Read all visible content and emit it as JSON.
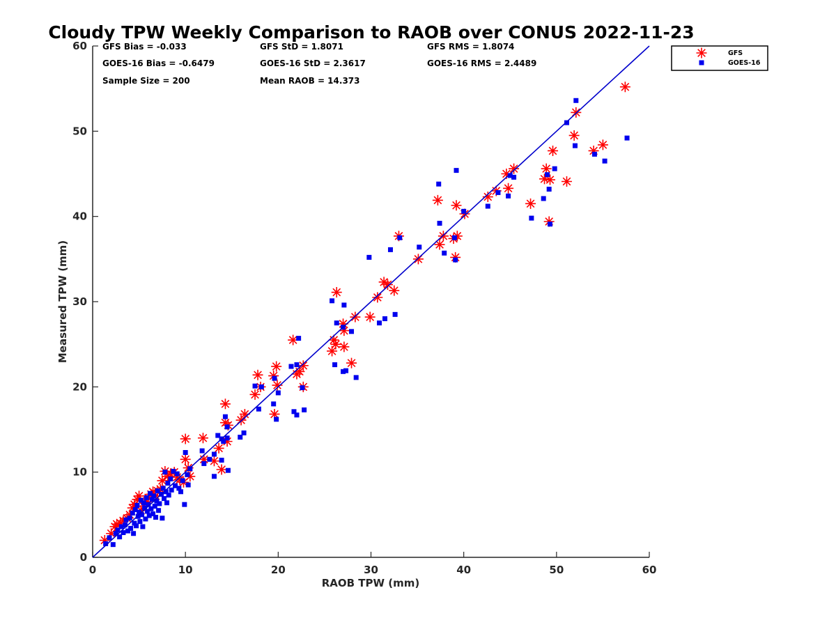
{
  "chart_data": {
    "type": "scatter",
    "title": "Cloudy TPW Weekly Comparison to RAOB over CONUS 2022-11-23",
    "xlabel": "RAOB TPW (mm)",
    "ylabel": "Measured TPW (mm)",
    "xlim": [
      0,
      60
    ],
    "ylim": [
      0,
      60
    ],
    "xticks": [
      "0",
      "10",
      "20",
      "30",
      "40",
      "50",
      "60"
    ],
    "yticks": [
      "0",
      "10",
      "20",
      "30",
      "40",
      "50",
      "60"
    ],
    "grid": false,
    "legend_position": "outside-top-right",
    "stats": [
      [
        "GFS Bias = -0.033",
        "GFS StD = 1.8071",
        "GFS RMS = 1.8074"
      ],
      [
        "GOES-16 Bias = -0.6479",
        "GOES-16 StD = 2.3617",
        "GOES-16 RMS = 2.4489"
      ],
      [
        "Sample Size = 200",
        "Mean RAOB = 14.373",
        ""
      ]
    ],
    "reference_line": {
      "type": "one-to-one",
      "from": [
        0,
        0
      ],
      "to": [
        60,
        60
      ],
      "color": "#0000cc"
    },
    "series": [
      {
        "name": "GFS",
        "marker": "asterisk",
        "color": "#ff0000",
        "points": [
          [
            1.3,
            2.0
          ],
          [
            2.0,
            2.8
          ],
          [
            2.4,
            3.6
          ],
          [
            2.6,
            3.9
          ],
          [
            3.0,
            4.0
          ],
          [
            3.3,
            4.3
          ],
          [
            3.7,
            4.6
          ],
          [
            4.0,
            5.0
          ],
          [
            4.3,
            5.8
          ],
          [
            4.5,
            6.2
          ],
          [
            4.8,
            6.8
          ],
          [
            5.0,
            7.2
          ],
          [
            5.2,
            5.5
          ],
          [
            5.5,
            6.0
          ],
          [
            5.8,
            6.5
          ],
          [
            6.0,
            7.0
          ],
          [
            6.3,
            7.4
          ],
          [
            6.5,
            7.7
          ],
          [
            6.8,
            7.2
          ],
          [
            7.0,
            7.8
          ],
          [
            7.3,
            8.0
          ],
          [
            7.5,
            9.0
          ],
          [
            7.8,
            10.1
          ],
          [
            8.1,
            9.5
          ],
          [
            8.4,
            9.8
          ],
          [
            8.8,
            10.0
          ],
          [
            9.1,
            9.4
          ],
          [
            9.4,
            9.1
          ],
          [
            9.8,
            8.8
          ],
          [
            10.0,
            11.5
          ],
          [
            10.3,
            10.5
          ],
          [
            10.5,
            9.5
          ],
          [
            10.0,
            13.9
          ],
          [
            11.9,
            14.0
          ],
          [
            12.0,
            11.5
          ],
          [
            13.1,
            11.3
          ],
          [
            13.6,
            12.8
          ],
          [
            13.9,
            10.3
          ],
          [
            14.3,
            18.0
          ],
          [
            14.3,
            15.8
          ],
          [
            14.5,
            13.6
          ],
          [
            14.6,
            15.5
          ],
          [
            16.0,
            16.1
          ],
          [
            16.4,
            16.8
          ],
          [
            17.5,
            19.1
          ],
          [
            17.8,
            21.4
          ],
          [
            18.1,
            20.0
          ],
          [
            19.5,
            21.3
          ],
          [
            19.6,
            16.8
          ],
          [
            19.8,
            22.4
          ],
          [
            19.9,
            20.2
          ],
          [
            21.6,
            25.5
          ],
          [
            22.0,
            21.5
          ],
          [
            22.3,
            21.8
          ],
          [
            22.7,
            22.5
          ],
          [
            22.7,
            20.0
          ],
          [
            25.8,
            24.2
          ],
          [
            26.0,
            25.5
          ],
          [
            26.2,
            25.0
          ],
          [
            26.3,
            31.1
          ],
          [
            27.0,
            27.4
          ],
          [
            27.1,
            26.6
          ],
          [
            27.1,
            24.7
          ],
          [
            27.9,
            22.8
          ],
          [
            28.3,
            28.2
          ],
          [
            29.9,
            28.2
          ],
          [
            30.7,
            30.5
          ],
          [
            31.4,
            32.3
          ],
          [
            31.8,
            32.0
          ],
          [
            32.5,
            31.3
          ],
          [
            33.0,
            37.7
          ],
          [
            35.1,
            35.0
          ],
          [
            37.2,
            41.9
          ],
          [
            37.4,
            36.7
          ],
          [
            37.8,
            37.7
          ],
          [
            38.9,
            37.4
          ],
          [
            39.2,
            41.3
          ],
          [
            39.1,
            35.2
          ],
          [
            39.3,
            37.7
          ],
          [
            40.1,
            40.3
          ],
          [
            42.6,
            42.3
          ],
          [
            43.5,
            43.0
          ],
          [
            44.6,
            45.0
          ],
          [
            44.8,
            43.3
          ],
          [
            45.4,
            45.6
          ],
          [
            47.2,
            41.5
          ],
          [
            48.7,
            44.4
          ],
          [
            48.9,
            45.6
          ],
          [
            49.2,
            39.4
          ],
          [
            49.3,
            44.3
          ],
          [
            49.6,
            47.7
          ],
          [
            51.1,
            44.1
          ],
          [
            51.9,
            49.5
          ],
          [
            52.1,
            52.2
          ],
          [
            54.0,
            47.7
          ],
          [
            55.0,
            48.4
          ],
          [
            57.4,
            55.2
          ]
        ]
      },
      {
        "name": "GOES-16",
        "marker": "square",
        "color": "#0000ee",
        "points": [
          [
            1.4,
            1.6
          ],
          [
            1.8,
            2.3
          ],
          [
            2.2,
            1.5
          ],
          [
            2.5,
            2.8
          ],
          [
            2.7,
            3.2
          ],
          [
            2.9,
            2.4
          ],
          [
            3.1,
            3.6
          ],
          [
            3.3,
            2.9
          ],
          [
            3.5,
            3.8
          ],
          [
            3.6,
            4.4
          ],
          [
            3.8,
            3.1
          ],
          [
            4.0,
            4.6
          ],
          [
            4.1,
            3.4
          ],
          [
            4.3,
            5.2
          ],
          [
            4.4,
            2.8
          ],
          [
            4.5,
            4.0
          ],
          [
            4.6,
            5.6
          ],
          [
            4.7,
            3.7
          ],
          [
            4.8,
            6.1
          ],
          [
            4.9,
            4.8
          ],
          [
            5.0,
            5.3
          ],
          [
            5.1,
            4.2
          ],
          [
            5.2,
            6.7
          ],
          [
            5.3,
            5.0
          ],
          [
            5.4,
            3.6
          ],
          [
            5.5,
            6.4
          ],
          [
            5.6,
            5.8
          ],
          [
            5.7,
            4.5
          ],
          [
            5.8,
            7.0
          ],
          [
            5.9,
            5.4
          ],
          [
            6.0,
            6.2
          ],
          [
            6.1,
            4.9
          ],
          [
            6.2,
            7.5
          ],
          [
            6.3,
            5.7
          ],
          [
            6.4,
            6.8
          ],
          [
            6.5,
            5.1
          ],
          [
            6.6,
            7.2
          ],
          [
            6.7,
            6.0
          ],
          [
            6.8,
            4.7
          ],
          [
            6.9,
            6.6
          ],
          [
            7.0,
            7.8
          ],
          [
            7.1,
            5.5
          ],
          [
            7.2,
            6.3
          ],
          [
            7.4,
            7.4
          ],
          [
            7.5,
            4.6
          ],
          [
            7.6,
            8.1
          ],
          [
            7.7,
            6.9
          ],
          [
            7.8,
            10.0
          ],
          [
            7.9,
            7.7
          ],
          [
            8.0,
            6.4
          ],
          [
            8.1,
            8.7
          ],
          [
            8.2,
            7.3
          ],
          [
            8.4,
            9.2
          ],
          [
            8.5,
            7.9
          ],
          [
            8.7,
            10.1
          ],
          [
            8.9,
            8.4
          ],
          [
            9.1,
            9.8
          ],
          [
            9.3,
            8.1
          ],
          [
            9.5,
            7.7
          ],
          [
            9.7,
            9.0
          ],
          [
            9.9,
            6.2
          ],
          [
            10.0,
            12.3
          ],
          [
            10.2,
            9.7
          ],
          [
            10.3,
            8.5
          ],
          [
            10.5,
            10.4
          ],
          [
            11.8,
            12.5
          ],
          [
            12.0,
            11.0
          ],
          [
            12.6,
            11.5
          ],
          [
            13.1,
            12.1
          ],
          [
            13.1,
            9.5
          ],
          [
            13.5,
            14.3
          ],
          [
            13.9,
            13.9
          ],
          [
            13.9,
            11.4
          ],
          [
            14.1,
            13.6
          ],
          [
            14.3,
            16.5
          ],
          [
            14.5,
            14.0
          ],
          [
            14.6,
            10.2
          ],
          [
            14.5,
            15.3
          ],
          [
            15.9,
            14.1
          ],
          [
            16.3,
            14.6
          ],
          [
            17.5,
            20.1
          ],
          [
            17.9,
            17.4
          ],
          [
            18.2,
            20.0
          ],
          [
            19.5,
            18.0
          ],
          [
            19.6,
            21.0
          ],
          [
            19.8,
            16.2
          ],
          [
            20.0,
            19.3
          ],
          [
            21.4,
            22.4
          ],
          [
            21.7,
            17.1
          ],
          [
            22.0,
            22.6
          ],
          [
            22.0,
            16.7
          ],
          [
            22.2,
            25.7
          ],
          [
            22.6,
            19.9
          ],
          [
            22.8,
            17.3
          ],
          [
            25.8,
            30.1
          ],
          [
            26.1,
            22.6
          ],
          [
            26.3,
            27.5
          ],
          [
            27.0,
            27.0
          ],
          [
            27.0,
            21.8
          ],
          [
            27.1,
            29.6
          ],
          [
            27.3,
            21.9
          ],
          [
            27.9,
            26.5
          ],
          [
            28.4,
            21.1
          ],
          [
            29.8,
            35.2
          ],
          [
            30.9,
            27.5
          ],
          [
            31.5,
            28.0
          ],
          [
            32.1,
            36.1
          ],
          [
            32.6,
            28.5
          ],
          [
            33.1,
            37.5
          ],
          [
            35.2,
            36.4
          ],
          [
            37.3,
            43.8
          ],
          [
            37.4,
            39.2
          ],
          [
            37.9,
            35.7
          ],
          [
            39.0,
            37.5
          ],
          [
            39.2,
            45.4
          ],
          [
            39.1,
            34.9
          ],
          [
            40.0,
            40.6
          ],
          [
            42.6,
            41.2
          ],
          [
            43.7,
            42.8
          ],
          [
            44.8,
            42.4
          ],
          [
            45.0,
            44.8
          ],
          [
            45.4,
            44.6
          ],
          [
            47.3,
            39.8
          ],
          [
            48.6,
            42.1
          ],
          [
            49.0,
            44.9
          ],
          [
            49.2,
            43.2
          ],
          [
            49.3,
            39.1
          ],
          [
            49.8,
            45.6
          ],
          [
            51.1,
            51.0
          ],
          [
            52.0,
            48.3
          ],
          [
            52.1,
            53.6
          ],
          [
            54.1,
            47.3
          ],
          [
            55.2,
            46.5
          ],
          [
            57.6,
            49.2
          ]
        ]
      }
    ]
  }
}
